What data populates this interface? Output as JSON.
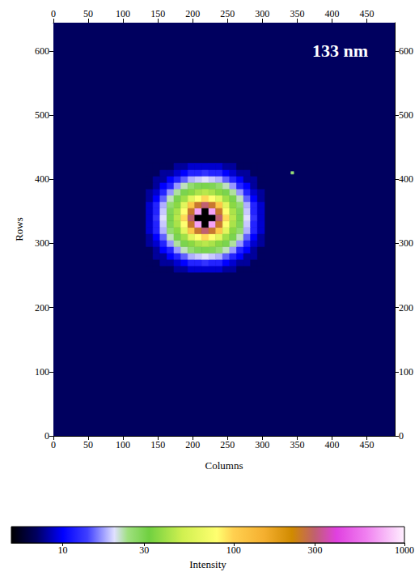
{
  "chart_data": {
    "type": "heatmap",
    "title": "133 nm",
    "x_label": "Columns",
    "y_label": "Rows",
    "xlim": [
      0,
      490
    ],
    "xticks": [
      0,
      50,
      100,
      150,
      200,
      250,
      300,
      350,
      400,
      450
    ],
    "ylim": [
      0,
      644
    ],
    "yticks": [
      0,
      100,
      200,
      300,
      400,
      500,
      600
    ],
    "colorbar": {
      "range": [
        5,
        1000
      ],
      "ticks": [
        10,
        30,
        100,
        300,
        1000
      ],
      "label": "Intensity",
      "log": true
    },
    "cells": [
      {
        "column_edges": [
          0,
          490
        ],
        "row_edges": [
          0,
          644
        ],
        "values": [
          [
            7
          ]
        ]
      },
      {
        "column_edges": [
          341,
          345
        ],
        "row_edges": [
          408,
          412
        ],
        "values": [
          [
            25
          ]
        ]
      },
      {
        "column_edges": [
          133,
          143,
          153,
          163,
          173,
          183,
          193,
          203,
          213,
          223,
          233,
          243,
          253,
          263,
          273,
          283,
          293,
          303
        ],
        "row_edges": [
          255,
          265,
          275,
          285,
          295,
          305,
          315,
          325,
          335,
          345,
          355,
          365,
          375,
          385,
          395,
          405,
          415,
          425
        ],
        "values": [
          [
            7,
            7,
            7,
            7,
            8,
            8,
            9,
            9,
            9,
            9,
            9,
            8,
            8,
            7,
            7,
            7,
            7
          ],
          [
            7,
            7,
            8,
            8,
            9,
            10,
            12,
            12,
            13,
            12,
            12,
            10,
            9,
            8,
            8,
            7,
            7
          ],
          [
            7,
            8,
            8,
            10,
            12,
            15,
            18,
            19,
            20,
            19,
            18,
            15,
            12,
            10,
            8,
            8,
            7
          ],
          [
            7,
            8,
            10,
            12,
            17,
            22,
            26,
            29,
            30,
            29,
            26,
            22,
            17,
            12,
            10,
            8,
            7
          ],
          [
            8,
            9,
            12,
            17,
            23,
            30,
            36,
            42,
            45,
            42,
            36,
            30,
            23,
            17,
            12,
            9,
            8
          ],
          [
            8,
            10,
            15,
            22,
            30,
            40,
            60,
            80,
            95,
            80,
            60,
            40,
            30,
            22,
            15,
            10,
            8
          ],
          [
            9,
            12,
            18,
            26,
            36,
            60,
            110,
            250,
            300,
            250,
            110,
            60,
            36,
            26,
            18,
            12,
            9
          ],
          [
            9,
            12,
            19,
            29,
            42,
            80,
            250,
            700,
            0,
            700,
            250,
            80,
            42,
            29,
            19,
            12,
            9
          ],
          [
            9,
            13,
            20,
            30,
            45,
            95,
            300,
            0,
            0,
            0,
            300,
            95,
            45,
            30,
            20,
            13,
            9
          ],
          [
            9,
            12,
            19,
            29,
            42,
            80,
            250,
            700,
            0,
            700,
            250,
            80,
            42,
            29,
            19,
            12,
            9
          ],
          [
            9,
            12,
            18,
            26,
            36,
            60,
            110,
            250,
            300,
            250,
            110,
            60,
            36,
            26,
            18,
            12,
            9
          ],
          [
            8,
            10,
            15,
            22,
            30,
            40,
            60,
            80,
            95,
            80,
            60,
            40,
            30,
            22,
            15,
            10,
            8
          ],
          [
            8,
            9,
            12,
            17,
            23,
            30,
            36,
            42,
            45,
            42,
            36,
            30,
            23,
            17,
            12,
            9,
            8
          ],
          [
            7,
            8,
            10,
            12,
            17,
            22,
            26,
            29,
            30,
            29,
            26,
            22,
            17,
            12,
            10,
            8,
            7
          ],
          [
            7,
            8,
            8,
            10,
            12,
            15,
            18,
            19,
            20,
            19,
            18,
            15,
            12,
            10,
            8,
            8,
            7
          ],
          [
            7,
            7,
            8,
            8,
            9,
            10,
            12,
            12,
            13,
            12,
            12,
            10,
            9,
            8,
            8,
            7,
            7
          ],
          [
            7,
            7,
            7,
            7,
            8,
            8,
            9,
            9,
            9,
            9,
            9,
            8,
            8,
            7,
            7,
            7,
            7
          ]
        ]
      }
    ]
  }
}
